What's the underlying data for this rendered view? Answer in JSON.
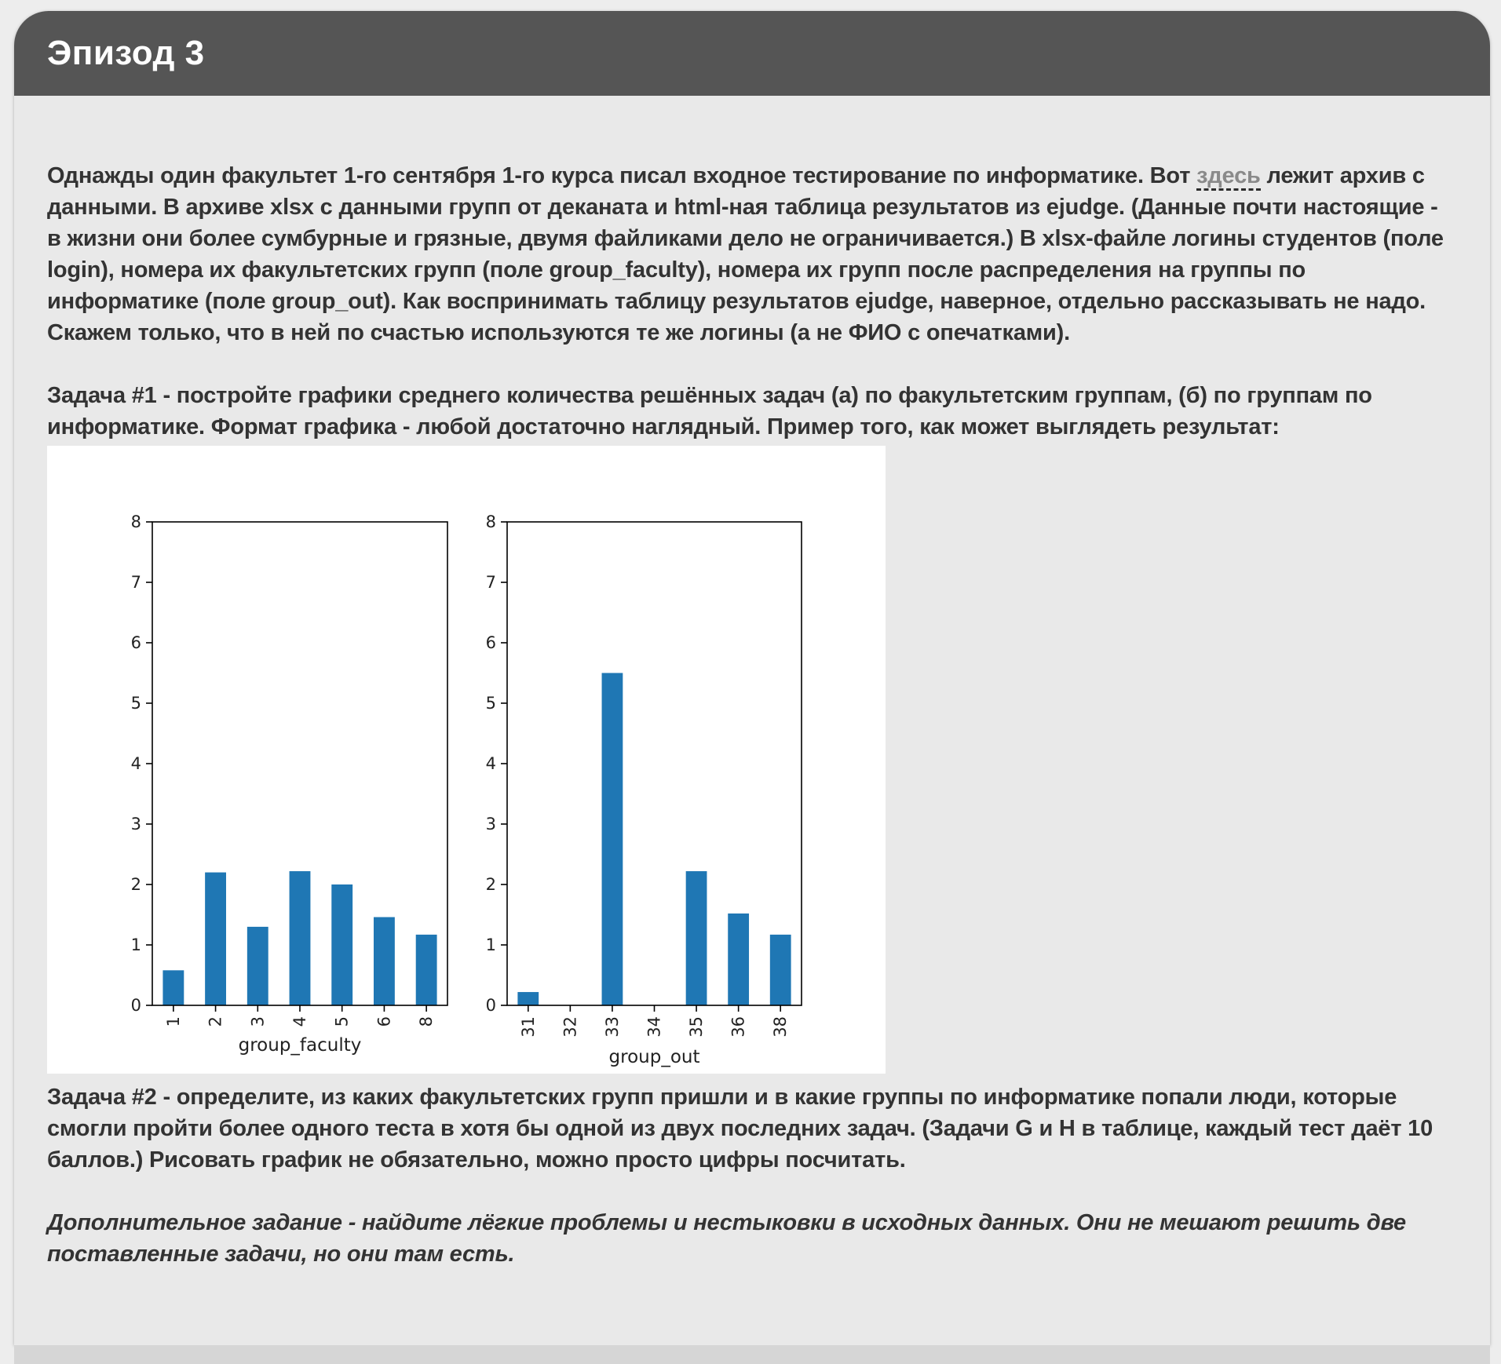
{
  "header": {
    "title": "Эпизод 3"
  },
  "intro": {
    "before_link": "Однажды один факультет 1-го сентября 1-го курса писал входное тестирование по информатике. Вот ",
    "link_text": "здесь",
    "after_link": " лежит архив с данными. В архиве xlsx с данными групп от деканата и html-ная таблица результатов из ejudge. (Данные почти настоящие - в жизни они более сумбурные и грязные, двумя файликами дело не ограничивается.) В xlsx-файле логины студентов (поле login), номера их факультетских групп (поле group_faculty), номера их групп после распределения на группы по информатике (поле group_out). Как воспринимать таблицу результатов ejudge, наверное, отдельно рассказывать не надо. Скажем только, что в ней по счастью используются те же логины (а не ФИО с опечатками)."
  },
  "task1": "Задача #1 - постройте графики среднего количества решённых задач (а) по факультетским группам, (б) по группам по информатике. Формат графика - любой достаточно наглядный. Пример того, как может выглядеть результат:",
  "task2": "Задача #2 - определите, из каких факультетских групп пришли и в какие группы по информатике попали люди, которые смогли пройти более одного теста в хотя бы одной из двух последних задач. (Задачи G и H в таблице, каждый тест даёт 10 баллов.) Рисовать график не обязательно, можно просто цифры посчитать.",
  "extra": "Дополнительное задание - найдите лёгкие проблемы и нестыковки в исходных данных. Они не мешают решить две поставленные задачи, но они там есть.",
  "chart_data": [
    {
      "type": "bar",
      "xlabel": "group_faculty",
      "categories": [
        "1",
        "2",
        "3",
        "4",
        "5",
        "6",
        "8"
      ],
      "values": [
        0.58,
        2.2,
        1.3,
        2.22,
        2.0,
        1.46,
        1.17
      ],
      "ylim": [
        0,
        8
      ],
      "yticks": [
        "0",
        "1",
        "2",
        "3",
        "4",
        "5",
        "6",
        "7",
        "8"
      ],
      "color": "#1f77b4",
      "grid": false
    },
    {
      "type": "bar",
      "xlabel": "group_out",
      "categories": [
        "31",
        "32",
        "33",
        "34",
        "35",
        "36",
        "38"
      ],
      "values": [
        0.22,
        0,
        5.5,
        0,
        2.22,
        1.52,
        1.17
      ],
      "ylim": [
        0,
        8
      ],
      "yticks": [
        "0",
        "1",
        "2",
        "3",
        "4",
        "5",
        "6",
        "7",
        "8"
      ],
      "color": "#1f77b4",
      "grid": false
    }
  ]
}
